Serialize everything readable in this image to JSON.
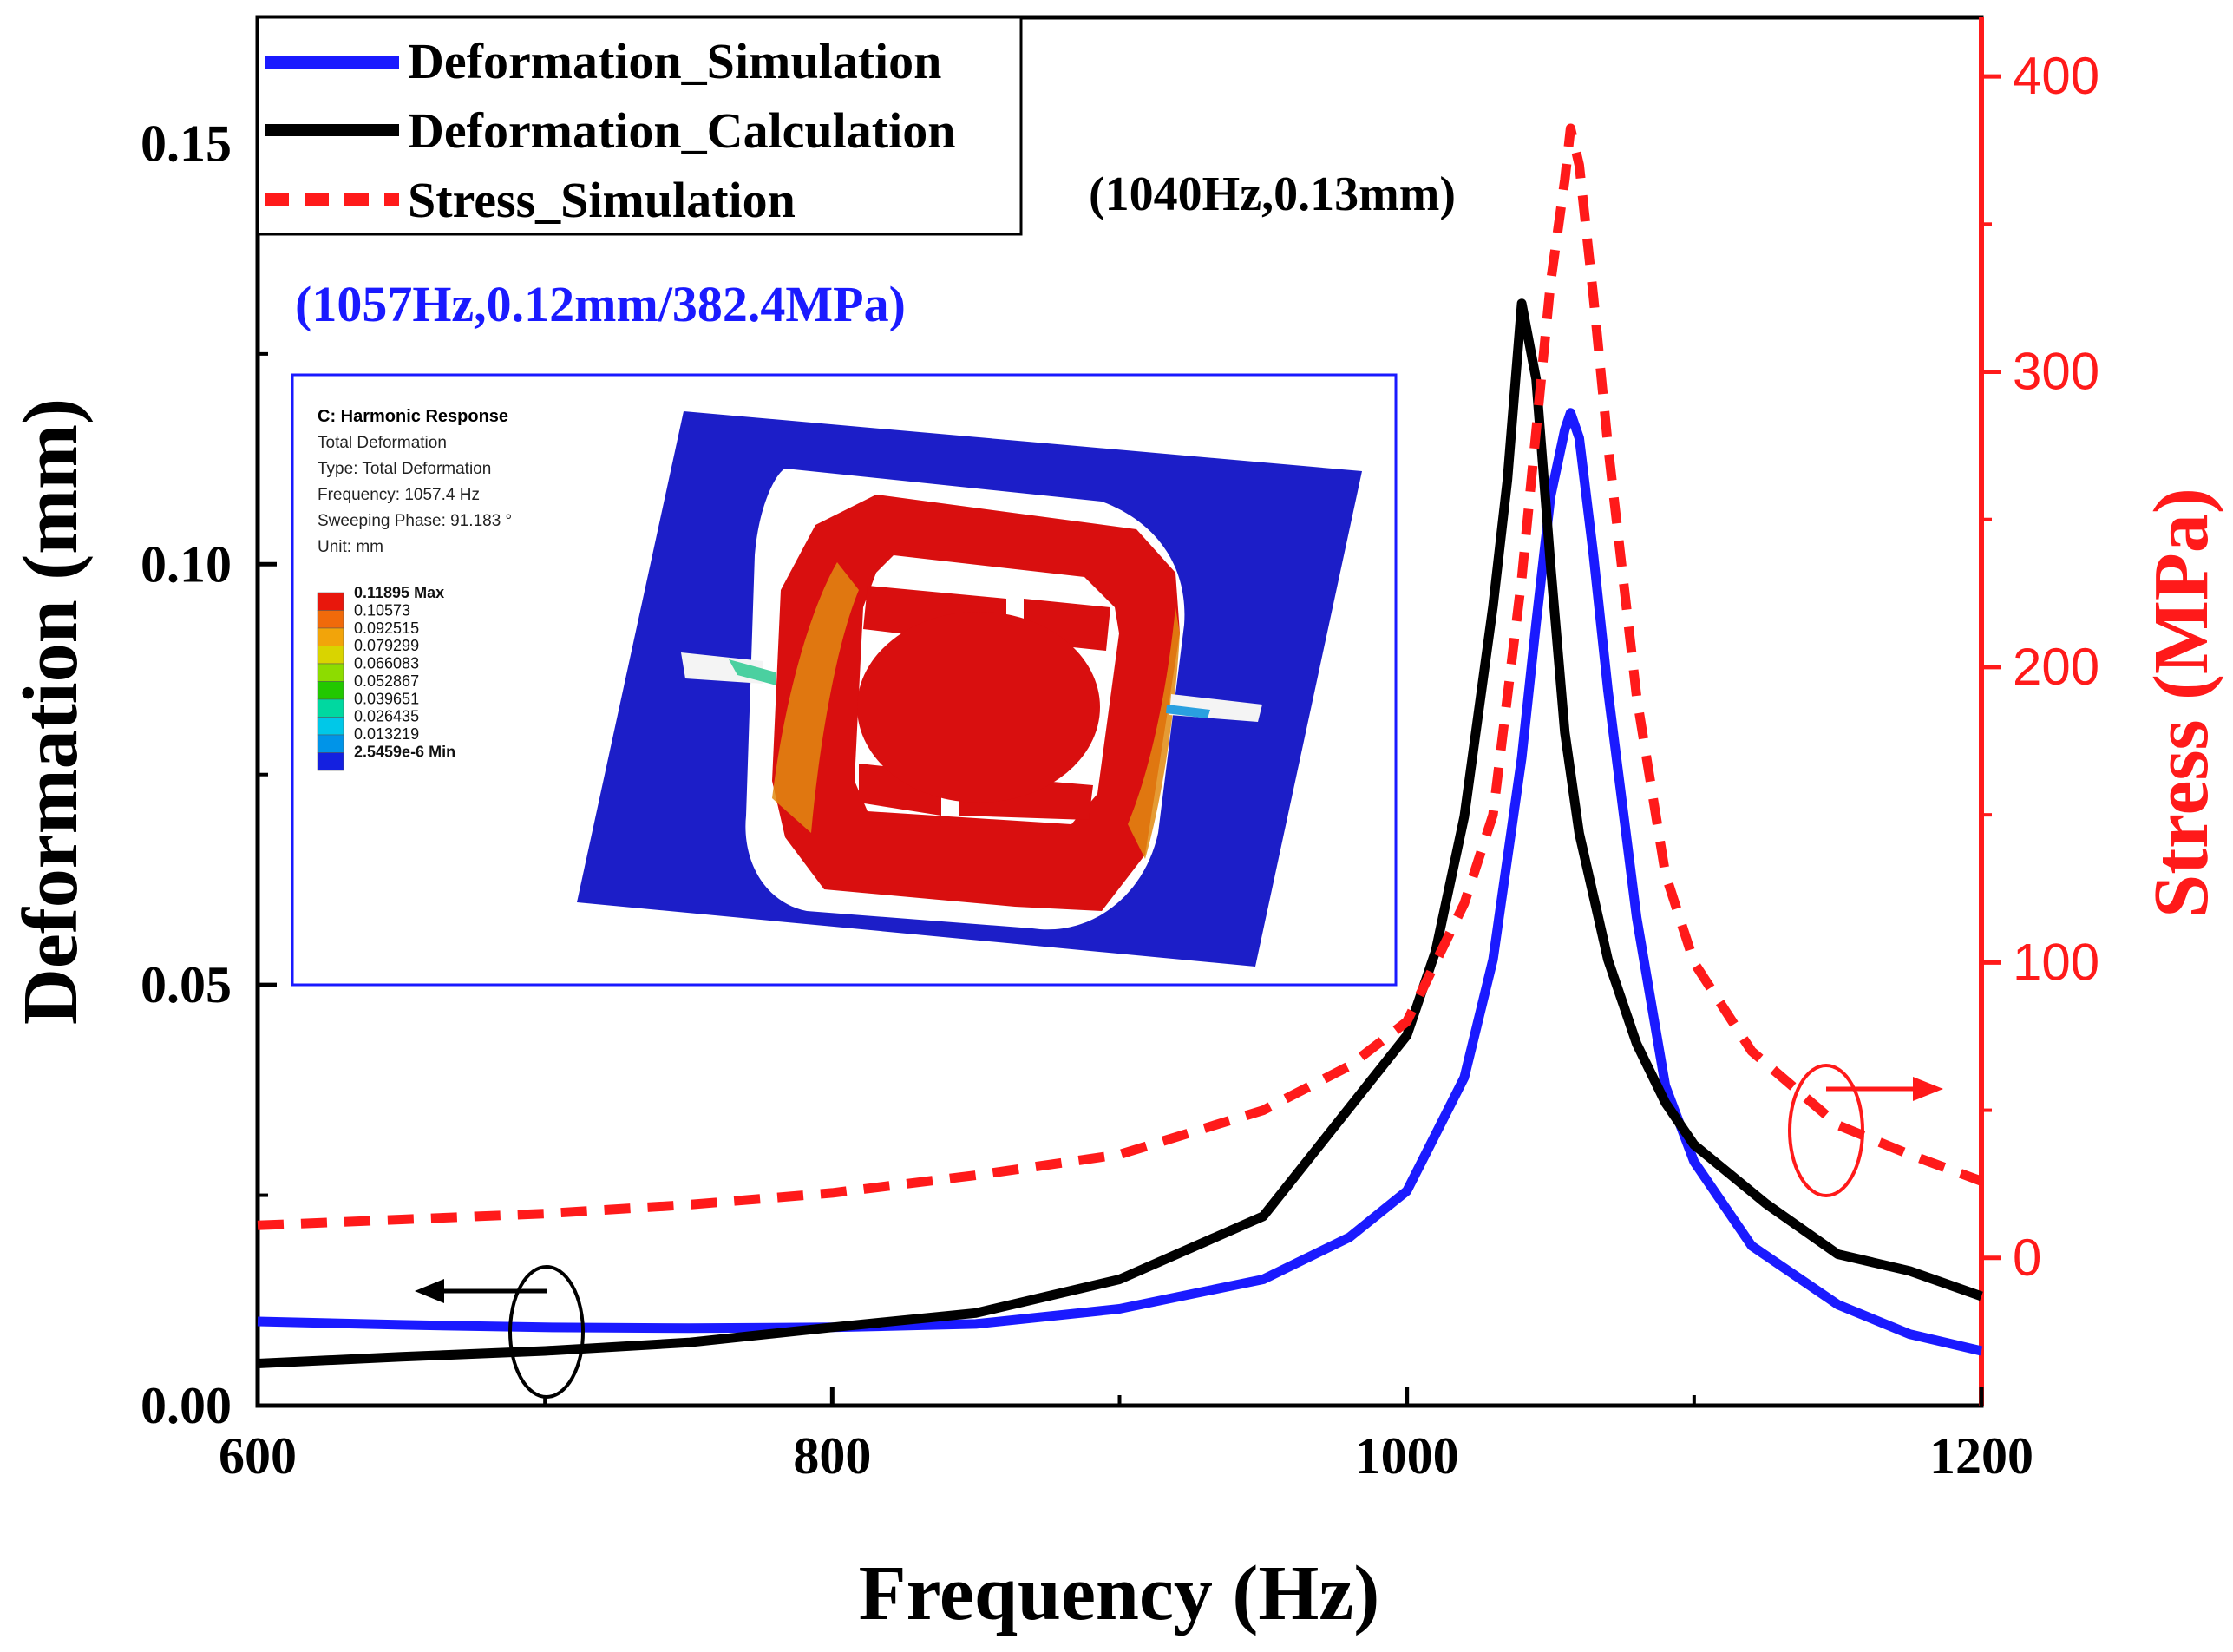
{
  "chart_data": {
    "type": "line",
    "title": "",
    "xlabel": "Frequency (Hz)",
    "ylabel_left": "Deformation (mm)",
    "ylabel_right": "Stress (MPa)",
    "xlim": [
      600,
      1200
    ],
    "ylim_left": [
      0,
      0.165
    ],
    "ylim_right": [
      -50,
      420
    ],
    "x_ticks": [
      600,
      800,
      1000,
      1200
    ],
    "x_tick_labels": [
      "600",
      "800",
      "1000",
      "1200"
    ],
    "y_left_ticks": [
      0.0,
      0.05,
      0.1,
      0.15
    ],
    "y_left_tick_labels": [
      "0.00",
      "0.05",
      "0.10",
      "0.15"
    ],
    "y_right_ticks": [
      0,
      100,
      200,
      300,
      400
    ],
    "y_right_tick_labels": [
      "0",
      "100",
      "200",
      "300",
      "400"
    ],
    "colors": {
      "simulation": "#1a1aff",
      "calculation": "#000000",
      "stress": "#ff1a1a",
      "annotation_blue": "#1a1aff",
      "annotation_black": "#000000"
    },
    "series": [
      {
        "name": "Deformation_Simulation",
        "axis": "left",
        "style": "solid",
        "x": [
          600,
          650,
          700,
          750,
          800,
          850,
          900,
          950,
          980,
          1000,
          1020,
          1030,
          1040,
          1045,
          1050,
          1055,
          1057,
          1060,
          1065,
          1070,
          1080,
          1090,
          1100,
          1120,
          1150,
          1175,
          1200
        ],
        "y": [
          0.01,
          0.0096,
          0.0093,
          0.0092,
          0.0093,
          0.0097,
          0.0115,
          0.015,
          0.02,
          0.0255,
          0.039,
          0.053,
          0.077,
          0.093,
          0.108,
          0.116,
          0.118,
          0.115,
          0.101,
          0.085,
          0.058,
          0.038,
          0.029,
          0.019,
          0.012,
          0.0085,
          0.0065
        ]
      },
      {
        "name": "Deformation_Calculation",
        "axis": "left",
        "style": "solid",
        "x": [
          600,
          650,
          700,
          750,
          800,
          850,
          900,
          950,
          1000,
          1010,
          1020,
          1030,
          1035,
          1040,
          1045,
          1050,
          1055,
          1060,
          1070,
          1080,
          1090,
          1100,
          1125,
          1150,
          1175,
          1200
        ],
        "y": [
          0.005,
          0.0058,
          0.0065,
          0.0075,
          0.0093,
          0.011,
          0.015,
          0.0225,
          0.044,
          0.054,
          0.07,
          0.095,
          0.11,
          0.131,
          0.122,
          0.1,
          0.08,
          0.068,
          0.053,
          0.043,
          0.036,
          0.031,
          0.024,
          0.018,
          0.016,
          0.013
        ]
      },
      {
        "name": "Stress_Simulation",
        "axis": "right",
        "style": "dashed",
        "x": [
          600,
          650,
          700,
          750,
          800,
          850,
          900,
          950,
          980,
          1000,
          1020,
          1030,
          1040,
          1045,
          1050,
          1055,
          1057,
          1060,
          1065,
          1070,
          1080,
          1090,
          1100,
          1120,
          1150,
          1175,
          1200
        ],
        "y": [
          11,
          13,
          15,
          18,
          22,
          28,
          35,
          50,
          65,
          80,
          120,
          150,
          230,
          280,
          330,
          365,
          382.4,
          370,
          325,
          275,
          190,
          130,
          100,
          70,
          45,
          35,
          26
        ]
      }
    ],
    "legend": {
      "placement": "top-left",
      "entries": [
        "Deformation_Simulation",
        "Deformation_Calculation",
        "Stress_Simulation"
      ]
    },
    "annotations": {
      "peak_calc": "(1040Hz,0.13mm)",
      "peak_sim": "(1057Hz,0.12mm/382.4MPa)"
    },
    "inset": {
      "title": "C: Harmonic Response",
      "lines": [
        "Total Deformation",
        "Type: Total Deformation",
        "Frequency: 1057.4 Hz",
        "Sweeping Phase: 91.183 °",
        "Unit: mm"
      ],
      "scale_labels": [
        "0.11895 Max",
        "0.10573",
        "0.092515",
        "0.079299",
        "0.066083",
        "0.052867",
        "0.039651",
        "0.026435",
        "0.013219",
        "2.5459e-6 Min"
      ],
      "scale_colors": [
        "#e8170c",
        "#f06a0a",
        "#f2a40a",
        "#d9d400",
        "#8ddc00",
        "#22c800",
        "#00d8a0",
        "#00c8e8",
        "#0094e8",
        "#1420e0"
      ]
    }
  }
}
